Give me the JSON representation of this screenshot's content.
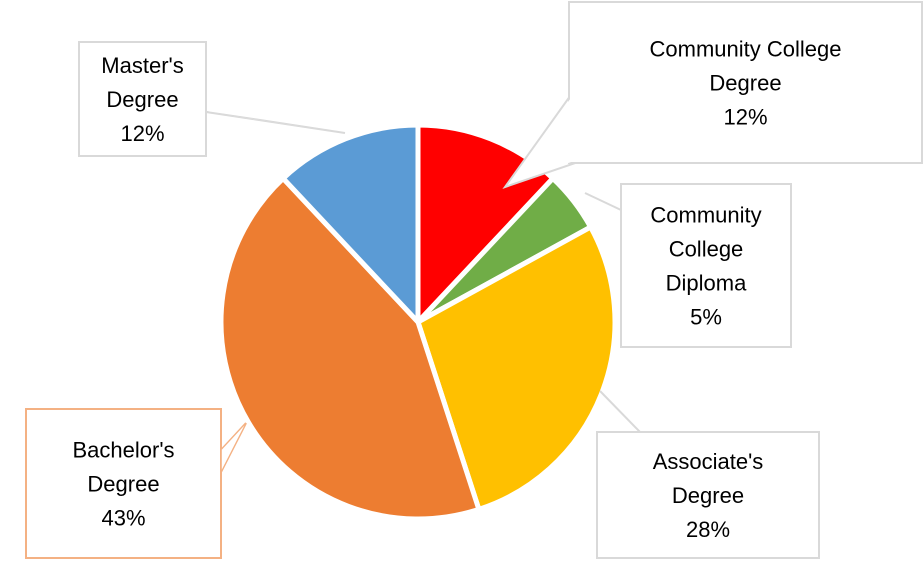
{
  "chart_data": {
    "type": "pie",
    "title": "",
    "slices": [
      {
        "name": "Community College Degree",
        "label_lines": [
          "Community College",
          "Degree"
        ],
        "value": 12,
        "value_label": "12%",
        "color": "#FF0000",
        "label_border": "#D9D9D9"
      },
      {
        "name": "Community College Diploma",
        "label_lines": [
          "Community",
          "College",
          "Diploma"
        ],
        "value": 5,
        "value_label": "5%",
        "color": "#70AD47",
        "label_border": "#D9D9D9"
      },
      {
        "name": "Associate's Degree",
        "label_lines": [
          "Associate's",
          "Degree"
        ],
        "value": 28,
        "value_label": "28%",
        "color": "#FFC000",
        "label_border": "#D9D9D9"
      },
      {
        "name": "Bachelor's Degree",
        "label_lines": [
          "Bachelor's",
          "Degree"
        ],
        "value": 43,
        "value_label": "43%",
        "color": "#ED7D31",
        "label_border": "#F4B183"
      },
      {
        "name": "Master's Degree",
        "label_lines": [
          "Master's",
          "Degree"
        ],
        "value": 12,
        "value_label": "12%",
        "color": "#5B9BD5",
        "label_border": "#D9D9D9"
      }
    ],
    "legend": "none"
  }
}
